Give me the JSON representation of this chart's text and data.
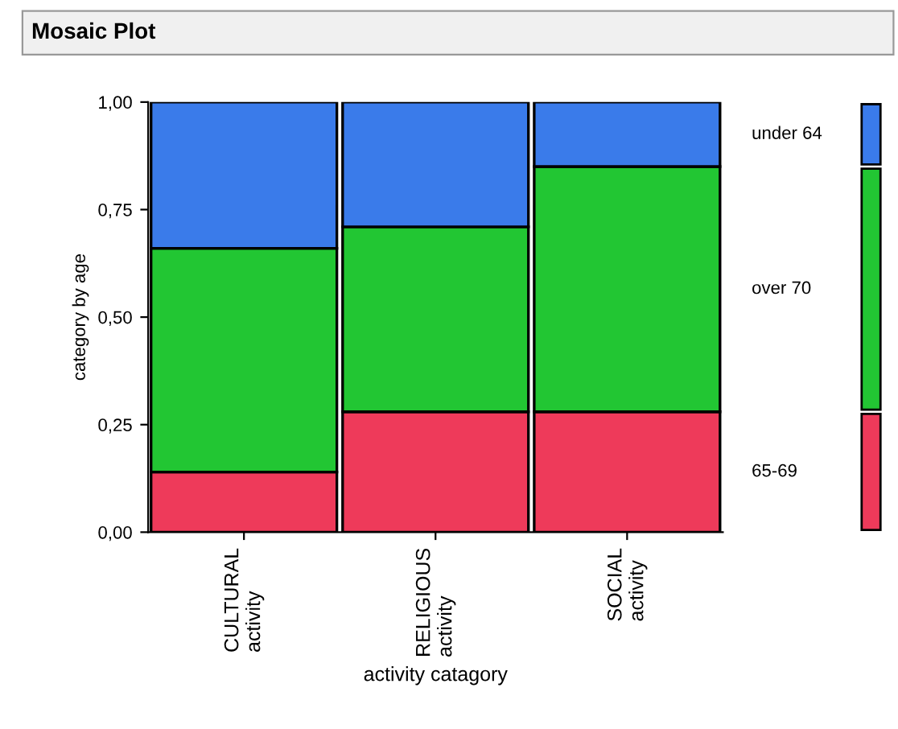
{
  "chart_data": {
    "type": "bar",
    "title": "Mosaic Plot",
    "xlabel": "activity catagory",
    "ylabel": "category by age",
    "categories": [
      "CULTURAL\nactivity",
      "RELIGIOUS\nactivity",
      "SOCIAL\nactivity"
    ],
    "stacked": true,
    "series": [
      {
        "name": "65-69",
        "color": "#ee3a5a",
        "values": [
          0.14,
          0.28,
          0.28
        ]
      },
      {
        "name": "over 70",
        "color": "#22c633",
        "values": [
          0.52,
          0.43,
          0.57
        ]
      },
      {
        "name": "under 64",
        "color": "#3a7bea",
        "values": [
          0.34,
          0.29,
          0.15
        ]
      }
    ],
    "ylim": [
      0,
      1
    ],
    "yticks": [
      {
        "value": 0,
        "label": "0,00"
      },
      {
        "value": 0.25,
        "label": "0,25"
      },
      {
        "value": 0.5,
        "label": "0,50"
      },
      {
        "value": 0.75,
        "label": "0,75"
      },
      {
        "value": 1,
        "label": "1,00"
      }
    ],
    "grid": false,
    "legend": "right"
  }
}
